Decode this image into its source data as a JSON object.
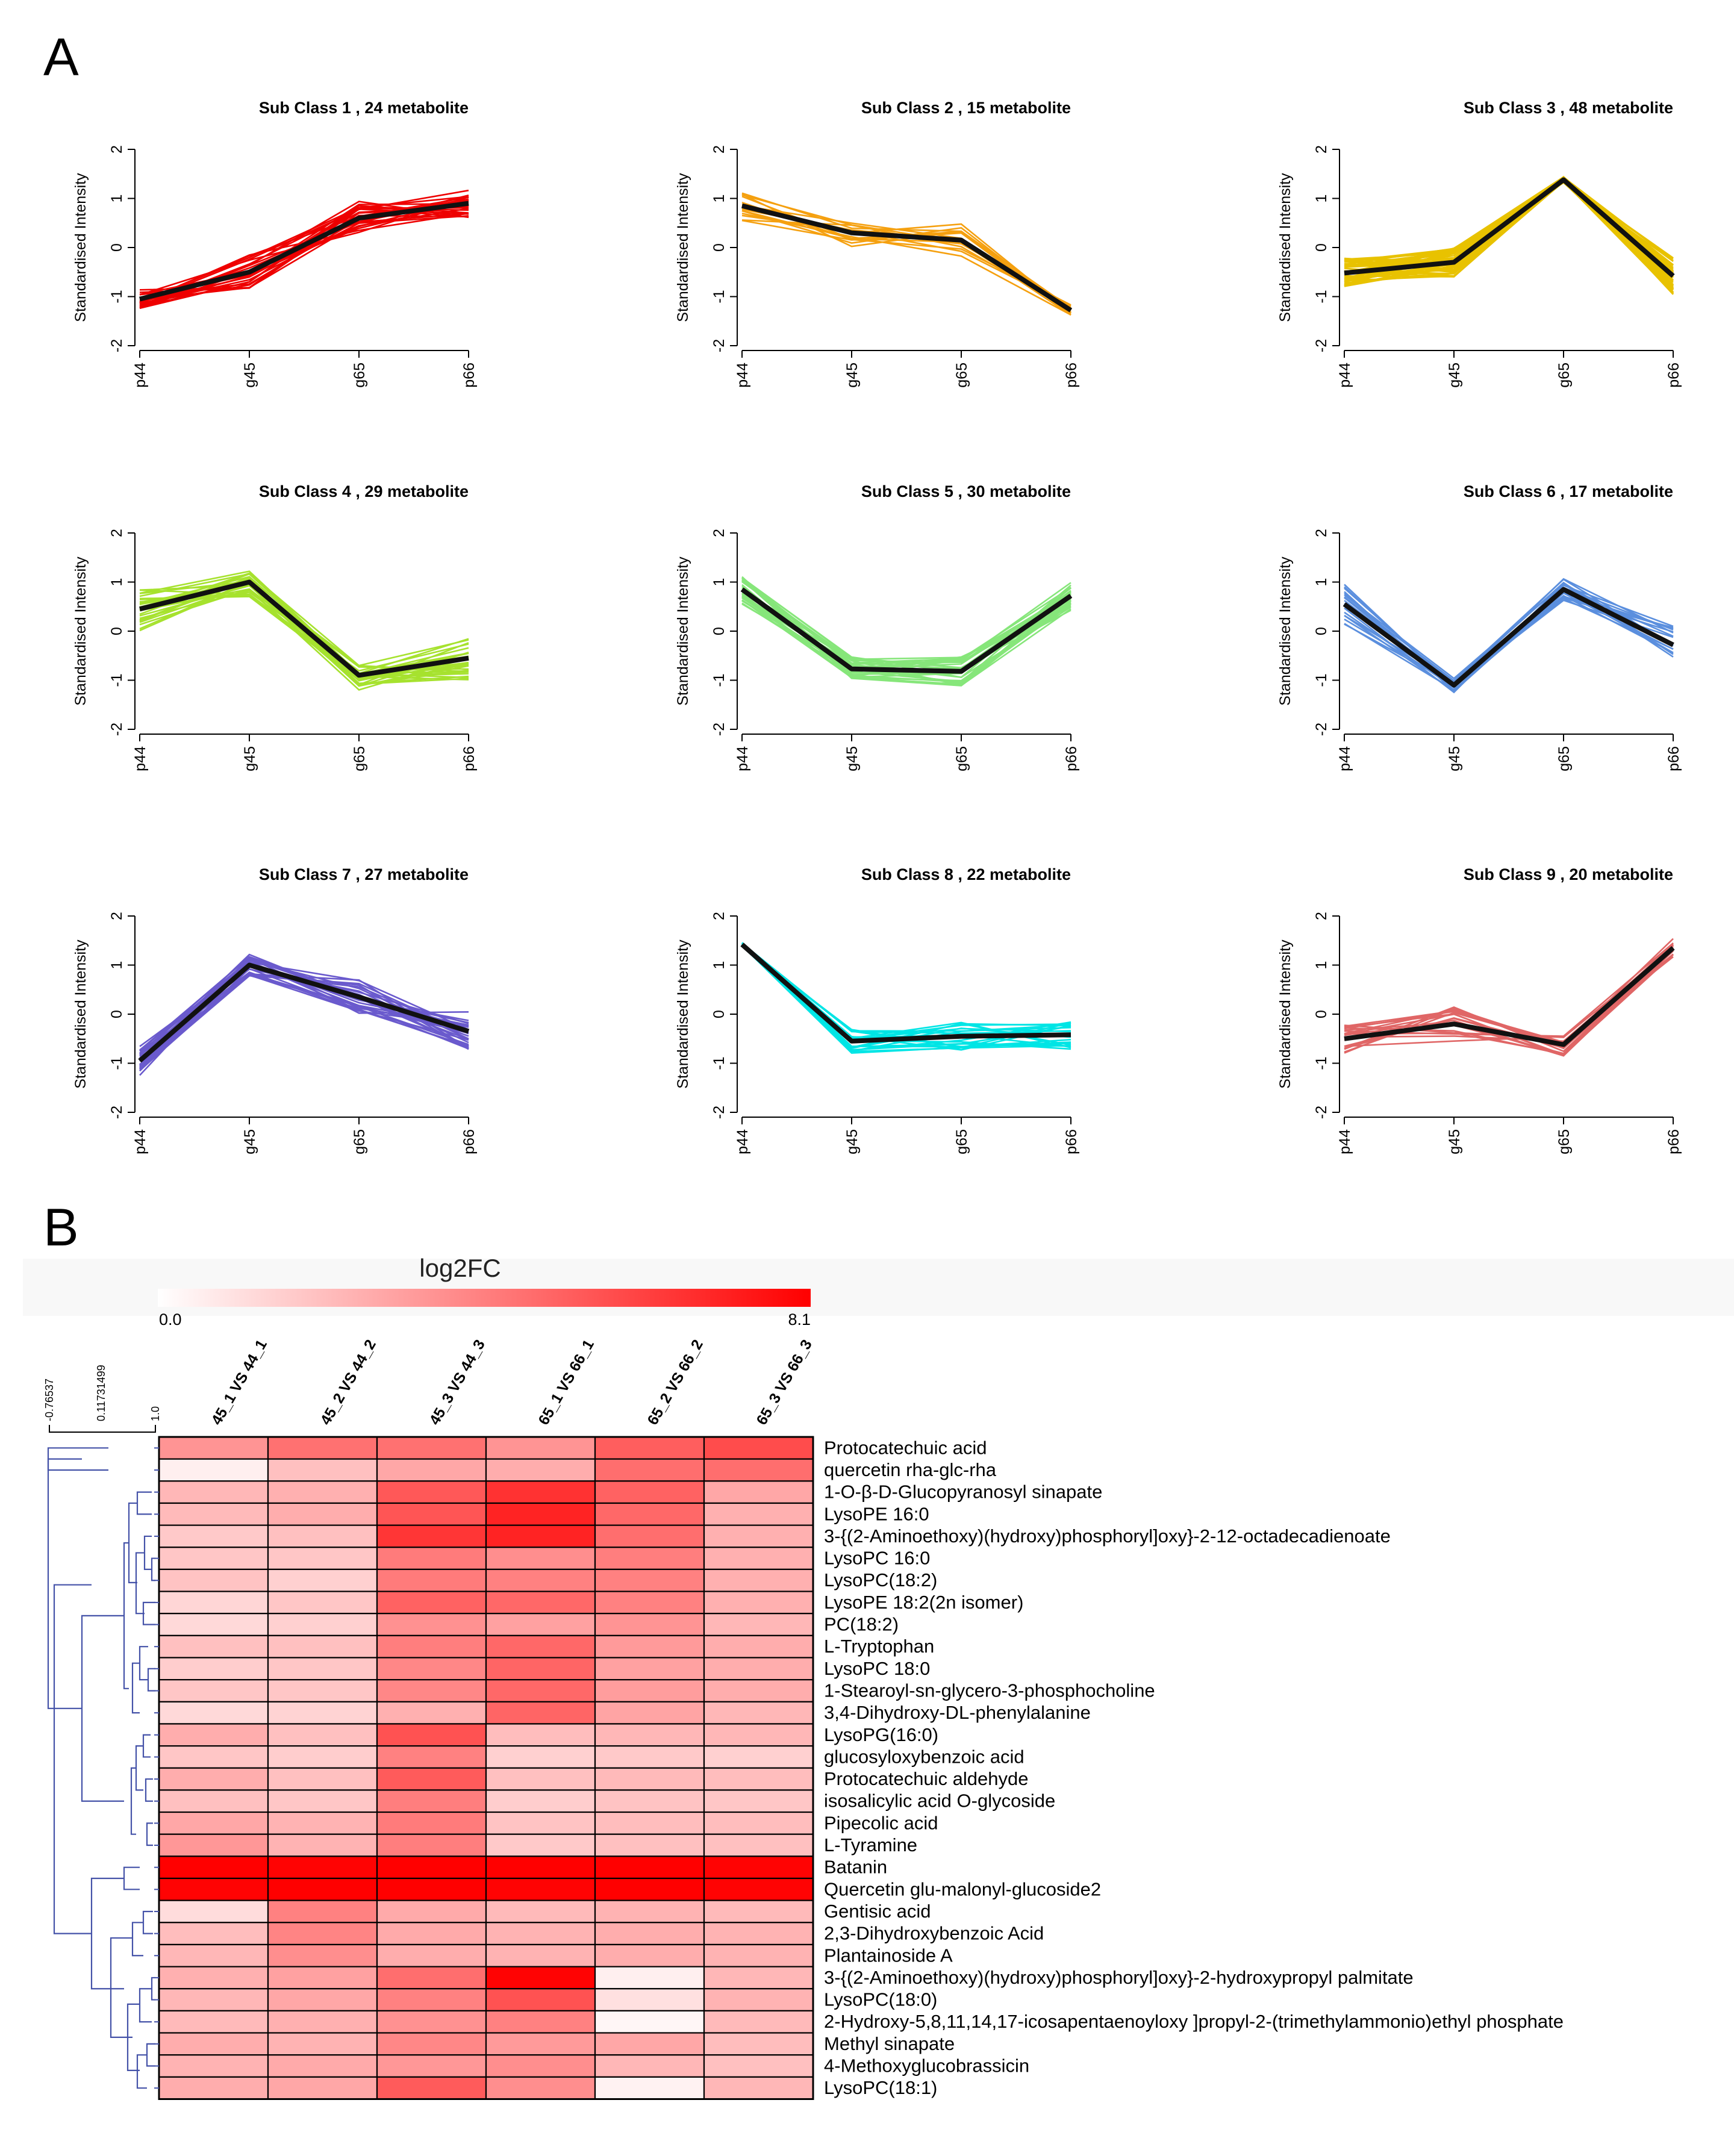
{
  "panels": {
    "a_label": "A",
    "b_label": "B"
  },
  "chart_data": [
    {
      "type": "line",
      "panel": "A",
      "y_axis_label": "Standardised Intensity",
      "x_categories": [
        "p44",
        "g45",
        "g65",
        "p66"
      ],
      "ylim": [
        -2,
        2
      ],
      "yticks": [
        -2,
        -1,
        0,
        1,
        2
      ],
      "subplots": [
        {
          "title": "Sub Class  1  , 24 metabolite",
          "color": "#ee0000",
          "n_lines": 24,
          "mean": [
            -1.05,
            -0.5,
            0.6,
            0.9
          ],
          "spread": [
            0.2,
            0.35,
            0.35,
            0.3
          ],
          "seed": 11
        },
        {
          "title": "Sub Class  4  , 29 metabolite",
          "color": "#a6e22e",
          "n_lines": 29,
          "mean": [
            0.45,
            1.0,
            -0.9,
            -0.55
          ],
          "spread": [
            0.45,
            0.3,
            0.3,
            0.45
          ],
          "seed": 14
        },
        {
          "title": "Sub Class  7  , 27 metabolite",
          "color": "#6a5acd",
          "n_lines": 27,
          "mean": [
            -0.95,
            1.0,
            0.35,
            -0.35
          ],
          "spread": [
            0.3,
            0.25,
            0.35,
            0.4
          ],
          "seed": 17
        },
        {
          "title": "Sub Class  2  , 15 metabolite",
          "color": "#f5a00f",
          "n_lines": 15,
          "mean": [
            0.85,
            0.3,
            0.15,
            -1.28
          ],
          "spread": [
            0.3,
            0.3,
            0.35,
            0.12
          ],
          "seed": 12
        },
        {
          "title": "Sub Class  5  , 30 metabolite",
          "color": "#86e67a",
          "n_lines": 30,
          "mean": [
            0.85,
            -0.77,
            -0.82,
            0.72
          ],
          "spread": [
            0.3,
            0.25,
            0.3,
            0.3
          ],
          "seed": 15
        },
        {
          "title": "Sub Class  8  , 22 metabolite",
          "color": "#00e5e5",
          "n_lines": 22,
          "mean": [
            1.42,
            -0.55,
            -0.45,
            -0.42
          ],
          "spread": [
            0.04,
            0.25,
            0.3,
            0.3
          ],
          "seed": 18
        },
        {
          "title": "Sub Class  3  , 48 metabolite",
          "color": "#e8c200",
          "n_lines": 48,
          "mean": [
            -0.52,
            -0.3,
            1.38,
            -0.58
          ],
          "spread": [
            0.3,
            0.3,
            0.06,
            0.4
          ],
          "seed": 13
        },
        {
          "title": "Sub Class  6  , 17 metabolite",
          "color": "#5b8fde",
          "n_lines": 17,
          "mean": [
            0.55,
            -1.1,
            0.85,
            -0.28
          ],
          "spread": [
            0.45,
            0.15,
            0.25,
            0.4
          ],
          "seed": 16
        },
        {
          "title": "Sub Class  9  , 20 metabolite",
          "color": "#e06666",
          "n_lines": 20,
          "mean": [
            -0.5,
            -0.2,
            -0.62,
            1.35
          ],
          "spread": [
            0.3,
            0.35,
            0.25,
            0.2
          ],
          "seed": 19
        }
      ]
    },
    {
      "type": "heatmap",
      "panel": "B",
      "colorbar": {
        "title": "log2FC",
        "min_label": "0.0",
        "max_label": "8.1",
        "min": 0,
        "max": 8.1,
        "color_low": "#ffffff",
        "color_high": "#ff0000"
      },
      "dendrogram_scale": [
        "-0.76537",
        "0.11731499",
        "1.0"
      ],
      "columns": [
        "45_1 VS 44_1",
        "45_2 VS 44_2",
        "45_3 VS 44_3",
        "65_1 VS 66_1",
        "65_2 VS 66_2",
        "65_3 VS 66_3"
      ],
      "rows": [
        {
          "name": "Protocatechuic acid",
          "values": [
            3.4,
            4.5,
            4.5,
            3.4,
            5.1,
            5.7
          ]
        },
        {
          "name": "quercetin rha-glc-rha",
          "values": [
            0.5,
            2.0,
            2.8,
            2.6,
            4.6,
            4.6
          ]
        },
        {
          "name": "1-O-β-D-Glucopyranosyl sinapate",
          "values": [
            2.3,
            2.5,
            5.3,
            6.5,
            5.0,
            2.8
          ]
        },
        {
          "name": "LysoPE 16:0",
          "values": [
            2.2,
            2.6,
            5.4,
            7.0,
            4.8,
            2.5
          ]
        },
        {
          "name": "3-{(2-Aminoethoxy)(hydroxy)phosphoryl]oxy}-2-12-octadecadienoate",
          "values": [
            1.7,
            2.0,
            6.4,
            7.0,
            4.6,
            2.5
          ]
        },
        {
          "name": "LysoPC 16:0",
          "values": [
            1.8,
            1.8,
            4.2,
            3.6,
            4.1,
            2.5
          ]
        },
        {
          "name": "LysoPC(18:2)",
          "values": [
            1.9,
            1.5,
            4.2,
            4.0,
            4.0,
            2.5
          ]
        },
        {
          "name": "LysoPE 18:2(2n isomer)",
          "values": [
            1.3,
            1.8,
            5.0,
            4.8,
            4.0,
            2.5
          ]
        },
        {
          "name": "PC(18:2)",
          "values": [
            1.2,
            1.5,
            3.5,
            3.0,
            3.4,
            2.3
          ]
        },
        {
          "name": "L-Tryptophan",
          "values": [
            2.0,
            2.0,
            4.1,
            4.8,
            3.2,
            2.6
          ]
        },
        {
          "name": "LysoPC 18:0",
          "values": [
            1.6,
            1.8,
            3.8,
            4.9,
            3.0,
            2.6
          ]
        },
        {
          "name": "1-Stearoyl-sn-glycero-3-phosphocholine",
          "values": [
            1.8,
            1.8,
            3.8,
            4.8,
            3.1,
            2.6
          ]
        },
        {
          "name": "3,4-Dihydroxy-DL-phenylalanine",
          "values": [
            1.2,
            1.4,
            2.5,
            4.9,
            2.9,
            2.3
          ]
        },
        {
          "name": "LysoPG(16:0)",
          "values": [
            2.6,
            2.0,
            5.5,
            2.1,
            2.3,
            2.3
          ]
        },
        {
          "name": "glucosyloxybenzoic acid",
          "values": [
            1.8,
            1.6,
            4.0,
            1.5,
            1.7,
            1.5
          ]
        },
        {
          "name": "Protocatechuic aldehyde",
          "values": [
            2.6,
            2.0,
            5.2,
            2.0,
            2.2,
            2.1
          ]
        },
        {
          "name": "isosalicylic acid O-glycoside",
          "values": [
            2.0,
            1.8,
            4.1,
            1.6,
            1.9,
            1.8
          ]
        },
        {
          "name": "Pipecolic acid",
          "values": [
            2.8,
            2.4,
            4.2,
            1.9,
            2.1,
            2.1
          ]
        },
        {
          "name": "L-Tyramine",
          "values": [
            3.3,
            2.4,
            4.1,
            1.7,
            2.0,
            2.0
          ]
        },
        {
          "name": "Batanin",
          "values": [
            8.1,
            8.0,
            8.1,
            8.1,
            8.1,
            8.0
          ]
        },
        {
          "name": "Quercetin glu-malonyl-glucoside2",
          "values": [
            8.0,
            8.1,
            8.1,
            8.0,
            8.1,
            8.0
          ]
        },
        {
          "name": "Gentisic acid",
          "values": [
            1.1,
            4.0,
            2.7,
            2.2,
            2.4,
            2.2
          ]
        },
        {
          "name": "2,3-Dihydroxybenzoic Acid",
          "values": [
            2.1,
            3.9,
            2.7,
            2.4,
            2.6,
            2.4
          ]
        },
        {
          "name": "Plantainoside A",
          "values": [
            2.3,
            3.6,
            2.6,
            2.4,
            2.6,
            2.4
          ]
        },
        {
          "name": "3-{(2-Aminoethoxy)(hydroxy)phosphoryl]oxy}-2-hydroxypropyl palmitate",
          "values": [
            2.5,
            3.0,
            4.6,
            8.0,
            0.5,
            2.3
          ]
        },
        {
          "name": "LysoPC(18:0)",
          "values": [
            2.3,
            2.8,
            4.0,
            5.5,
            1.0,
            2.4
          ]
        },
        {
          "name": "2-Hydroxy-5,8,11,14,17-icosapentaenoyloxy ]propyl-2-(trimethylammonio)ethyl phosphate",
          "values": [
            2.2,
            2.5,
            3.5,
            4.0,
            0.3,
            2.2
          ]
        },
        {
          "name": "Methyl sinapate",
          "values": [
            2.6,
            2.4,
            3.8,
            3.2,
            2.8,
            2.1
          ]
        },
        {
          "name": "4-Methoxyglucobrassicin",
          "values": [
            2.4,
            2.7,
            3.3,
            3.6,
            2.3,
            2.0
          ]
        },
        {
          "name": "LysoPC(18:1)",
          "values": [
            2.6,
            2.8,
            5.2,
            3.6,
            0.4,
            2.3
          ]
        }
      ]
    }
  ]
}
